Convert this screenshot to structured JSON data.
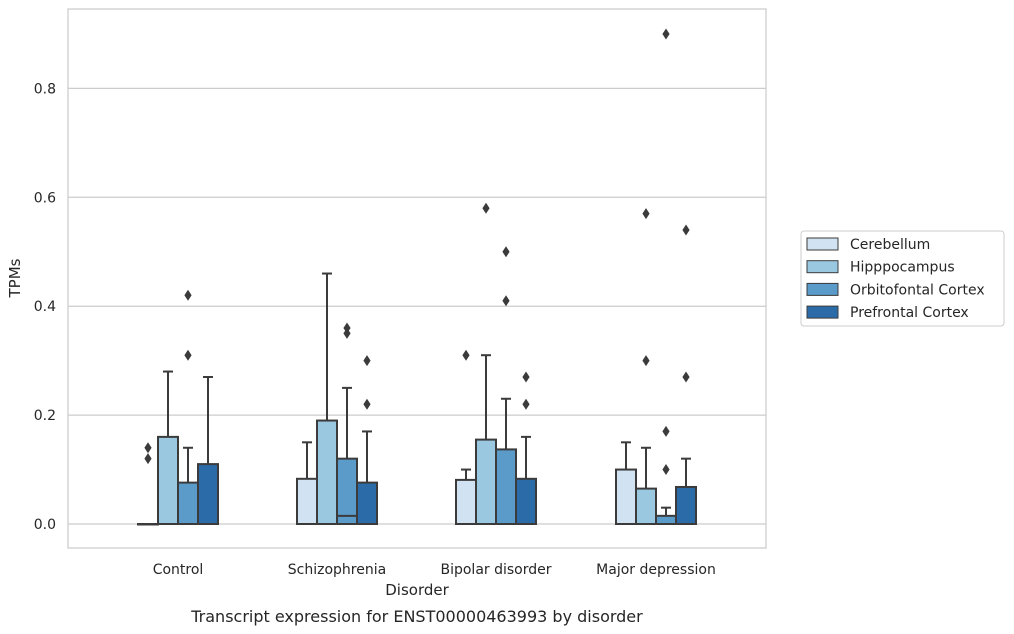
{
  "chart_data": {
    "type": "box",
    "title": "",
    "caption": "Transcript expression for ENST00000463993 by disorder",
    "xlabel": "Disorder",
    "ylabel": "TPMs",
    "ylim": [
      -0.045,
      0.945
    ],
    "yticks": [
      0.0,
      0.2,
      0.4,
      0.6,
      0.8
    ],
    "ytick_labels": [
      "0.0",
      "0.2",
      "0.4",
      "0.6",
      "0.8"
    ],
    "grid": "horizontal",
    "legend_position": "right",
    "categories": [
      "Control",
      "Schizophrenia",
      "Bipolar disorder",
      "Major depression"
    ],
    "series": [
      {
        "name": "Cerebellum",
        "color": "#d1e2f2",
        "boxes": [
          {
            "q1": 0.0,
            "median": 0.0,
            "q3": 0.0,
            "whisker_low": 0.0,
            "whisker_high": 0.0,
            "outliers": [
              0.12,
              0.14
            ]
          },
          {
            "q1": 0.0,
            "median": 0.0,
            "q3": 0.083,
            "whisker_low": 0.0,
            "whisker_high": 0.15,
            "outliers": []
          },
          {
            "q1": 0.0,
            "median": 0.0,
            "q3": 0.081,
            "whisker_low": 0.0,
            "whisker_high": 0.1,
            "outliers": [
              0.31
            ]
          },
          {
            "q1": 0.0,
            "median": 0.0,
            "q3": 0.1,
            "whisker_low": 0.0,
            "whisker_high": 0.15,
            "outliers": []
          }
        ]
      },
      {
        "name": "Hipppocampus",
        "color": "#9ac8e0",
        "boxes": [
          {
            "q1": 0.0,
            "median": 0.0,
            "q3": 0.16,
            "whisker_low": 0.0,
            "whisker_high": 0.28,
            "outliers": []
          },
          {
            "q1": 0.0,
            "median": 0.0,
            "q3": 0.19,
            "whisker_low": 0.0,
            "whisker_high": 0.46,
            "outliers": []
          },
          {
            "q1": 0.0,
            "median": 0.0,
            "q3": 0.155,
            "whisker_low": 0.0,
            "whisker_high": 0.31,
            "outliers": [
              0.58
            ]
          },
          {
            "q1": 0.0,
            "median": 0.0,
            "q3": 0.065,
            "whisker_low": 0.0,
            "whisker_high": 0.14,
            "outliers": [
              0.3,
              0.57
            ]
          }
        ]
      },
      {
        "name": "Orbitofontal Cortex",
        "color": "#5a9bc9",
        "boxes": [
          {
            "q1": 0.0,
            "median": 0.0,
            "q3": 0.076,
            "whisker_low": 0.0,
            "whisker_high": 0.14,
            "outliers": [
              0.31,
              0.42
            ]
          },
          {
            "q1": 0.0,
            "median": 0.015,
            "q3": 0.12,
            "whisker_low": 0.0,
            "whisker_high": 0.25,
            "outliers": [
              0.35,
              0.36
            ]
          },
          {
            "q1": 0.0,
            "median": 0.0,
            "q3": 0.137,
            "whisker_low": 0.0,
            "whisker_high": 0.23,
            "outliers": [
              0.41,
              0.5
            ]
          },
          {
            "q1": 0.0,
            "median": 0.0,
            "q3": 0.015,
            "whisker_low": 0.0,
            "whisker_high": 0.03,
            "outliers": [
              0.1,
              0.17,
              0.9
            ]
          }
        ]
      },
      {
        "name": "Prefrontal Cortex",
        "color": "#2b6ca8",
        "boxes": [
          {
            "q1": 0.0,
            "median": 0.0,
            "q3": 0.11,
            "whisker_low": 0.0,
            "whisker_high": 0.27,
            "outliers": []
          },
          {
            "q1": 0.0,
            "median": 0.0,
            "q3": 0.076,
            "whisker_low": 0.0,
            "whisker_high": 0.17,
            "outliers": [
              0.22,
              0.3
            ]
          },
          {
            "q1": 0.0,
            "median": 0.0,
            "q3": 0.083,
            "whisker_low": 0.0,
            "whisker_high": 0.16,
            "outliers": [
              0.22,
              0.27
            ]
          },
          {
            "q1": 0.0,
            "median": 0.0,
            "q3": 0.068,
            "whisker_low": 0.0,
            "whisker_high": 0.12,
            "outliers": [
              0.27,
              0.54
            ]
          }
        ]
      }
    ]
  }
}
